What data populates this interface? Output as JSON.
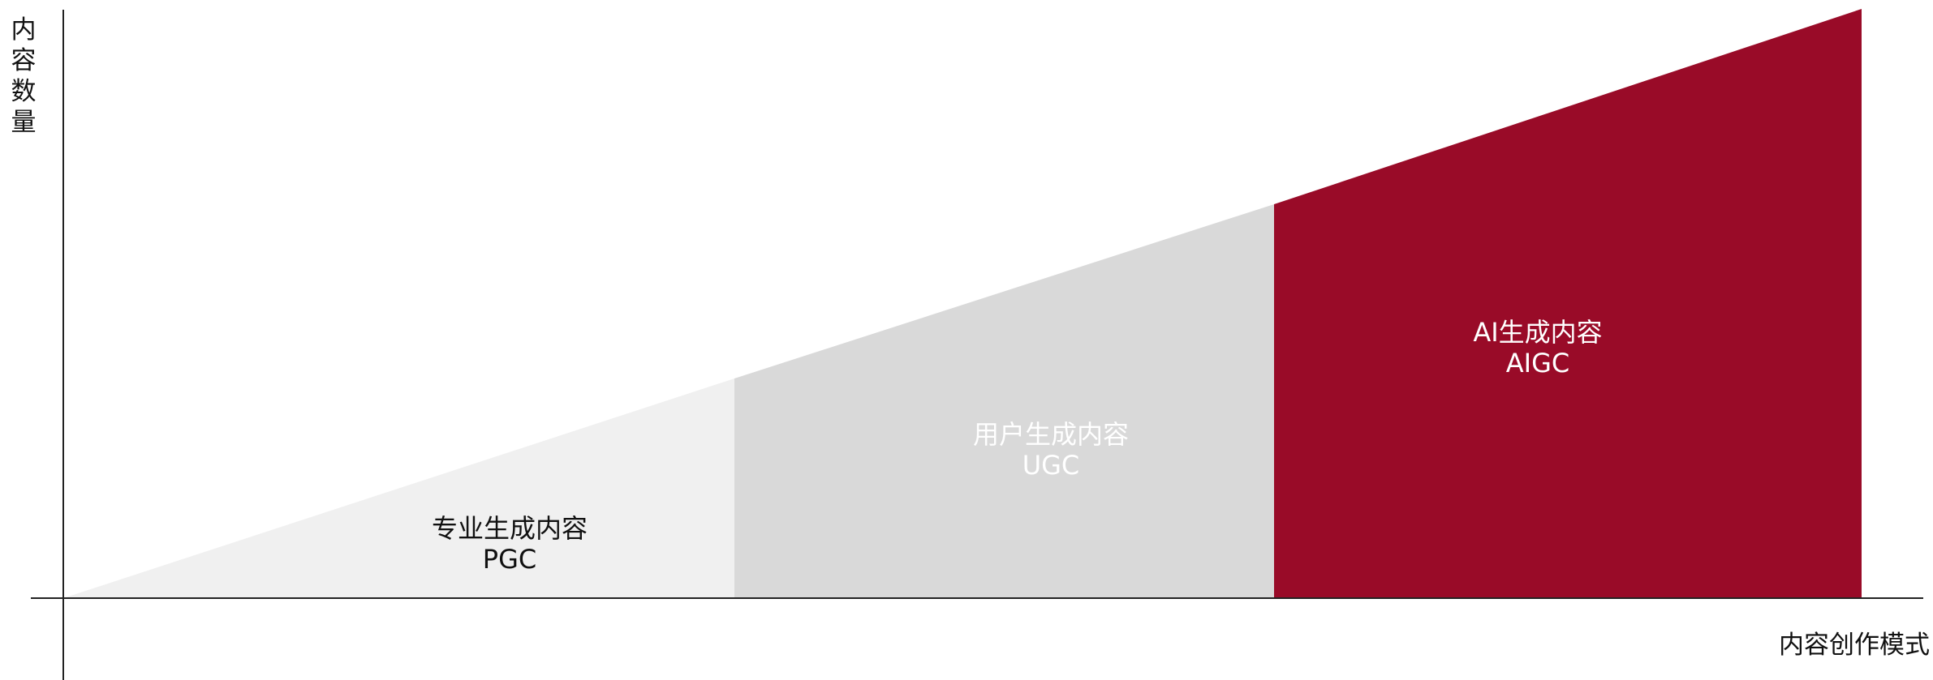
{
  "axes": {
    "y_label": "内容数量",
    "x_label": "内容创作模式"
  },
  "segments": [
    {
      "name": "专业生成内容",
      "abbr": "PGC",
      "color": "#f0f0f0",
      "text_color": "#111111"
    },
    {
      "name": "用户生成内容",
      "abbr": "UGC",
      "color": "#d9d9d9",
      "text_color": "#ffffff"
    },
    {
      "name": "AI生成内容",
      "abbr": "AIGC",
      "color": "#990b28",
      "text_color": "#ffffff"
    }
  ],
  "colors": {
    "axis": "#222222",
    "background": "#ffffff"
  }
}
